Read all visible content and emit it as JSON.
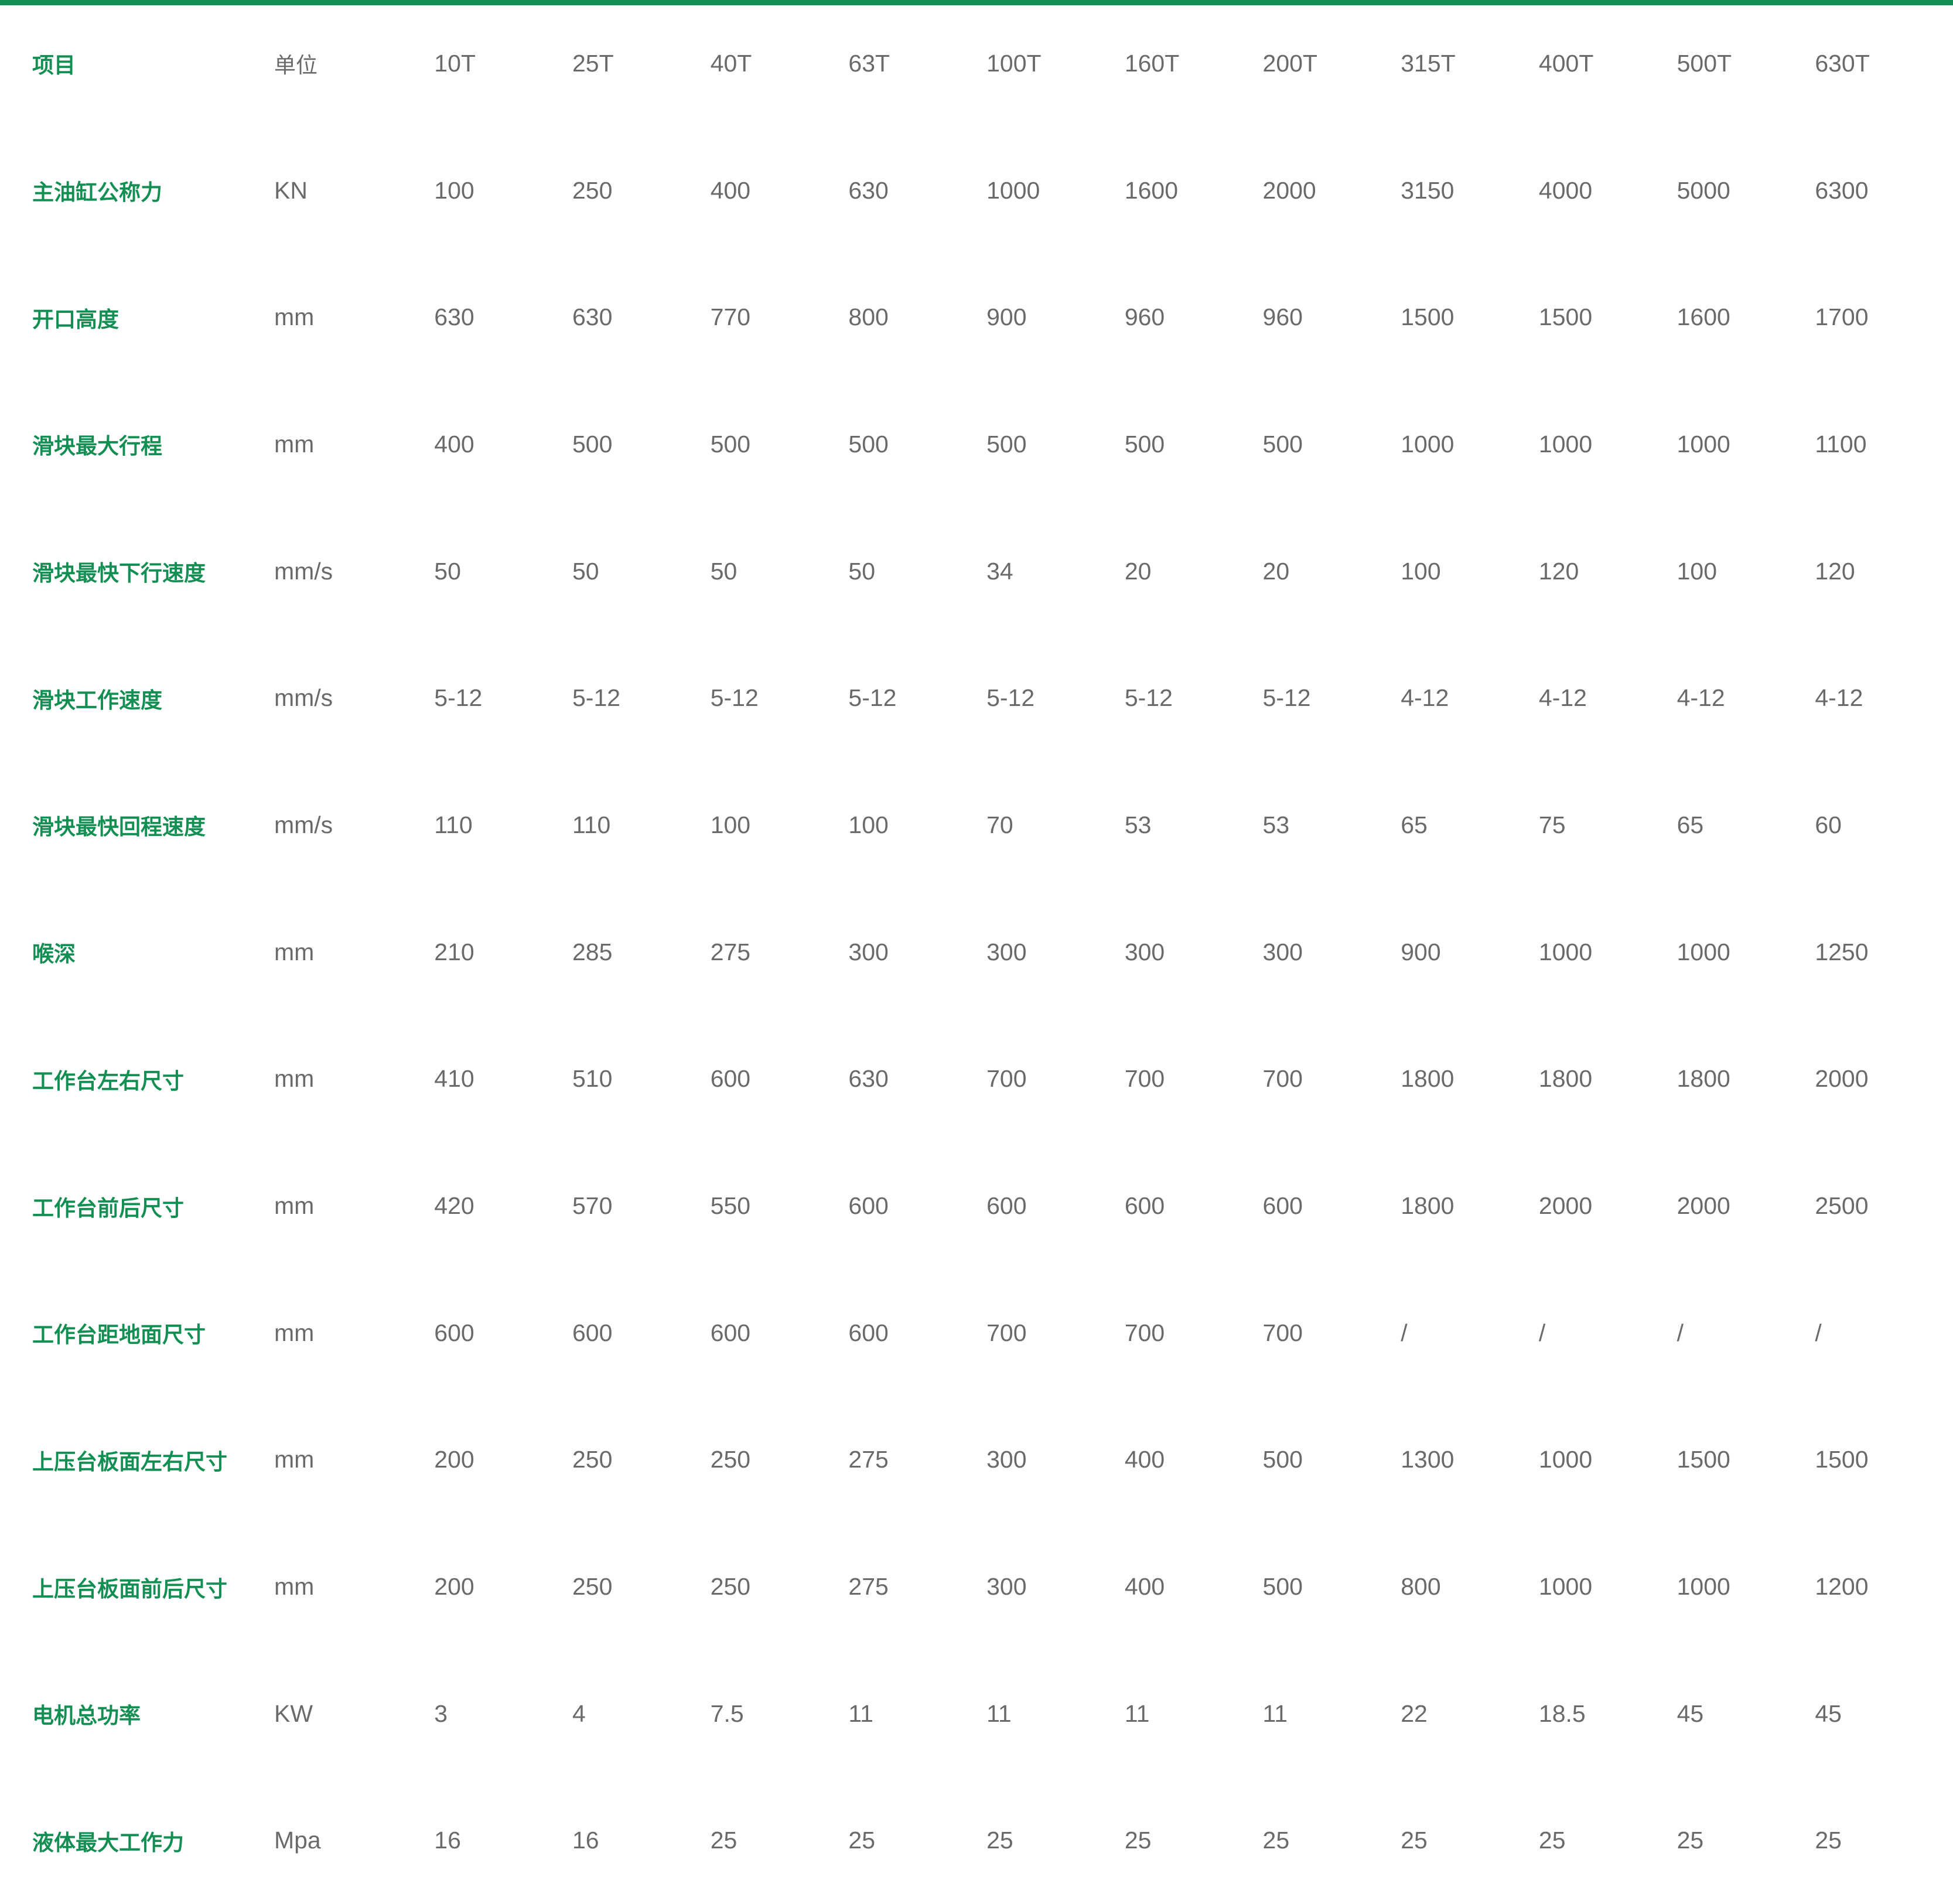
{
  "colors": {
    "accent": "#138f53",
    "text": "#6a6a6a"
  },
  "header": {
    "label": "项目",
    "unit": "单位",
    "models": [
      "10T",
      "25T",
      "40T",
      "63T",
      "100T",
      "160T",
      "200T",
      "315T",
      "400T",
      "500T",
      "630T"
    ]
  },
  "rows": [
    {
      "label": "主油缸公称力",
      "unit": "KN",
      "values": [
        "100",
        "250",
        "400",
        "630",
        "1000",
        "1600",
        "2000",
        "3150",
        "4000",
        "5000",
        "6300"
      ]
    },
    {
      "label": "开口高度",
      "unit": "mm",
      "values": [
        "630",
        "630",
        "770",
        "800",
        "900",
        "960",
        "960",
        "1500",
        "1500",
        "1600",
        "1700"
      ]
    },
    {
      "label": "滑块最大行程",
      "unit": "mm",
      "values": [
        "400",
        "500",
        "500",
        "500",
        "500",
        "500",
        "500",
        "1000",
        "1000",
        "1000",
        "1100"
      ]
    },
    {
      "label": "滑块最快下行速度",
      "unit": "mm/s",
      "values": [
        "50",
        "50",
        "50",
        "50",
        "34",
        "20",
        "20",
        "100",
        "120",
        "100",
        "120"
      ]
    },
    {
      "label": "滑块工作速度",
      "unit": "mm/s",
      "values": [
        "5-12",
        "5-12",
        "5-12",
        "5-12",
        "5-12",
        "5-12",
        "5-12",
        "4-12",
        "4-12",
        "4-12",
        "4-12"
      ]
    },
    {
      "label": "滑块最快回程速度",
      "unit": "mm/s",
      "values": [
        "110",
        "110",
        "100",
        "100",
        "70",
        "53",
        "53",
        "65",
        "75",
        "65",
        "60"
      ]
    },
    {
      "label": "喉深",
      "unit": "mm",
      "values": [
        "210",
        "285",
        "275",
        "300",
        "300",
        "300",
        "300",
        "900",
        "1000",
        "1000",
        "1250"
      ]
    },
    {
      "label": "工作台左右尺寸",
      "unit": "mm",
      "values": [
        "410",
        "510",
        "600",
        "630",
        "700",
        "700",
        "700",
        "1800",
        "1800",
        "1800",
        "2000"
      ]
    },
    {
      "label": "工作台前后尺寸",
      "unit": "mm",
      "values": [
        "420",
        "570",
        "550",
        "600",
        "600",
        "600",
        "600",
        "1800",
        "2000",
        "2000",
        "2500"
      ]
    },
    {
      "label": "工作台距地面尺寸",
      "unit": "mm",
      "values": [
        "600",
        "600",
        "600",
        "600",
        "700",
        "700",
        "700",
        "/",
        "/",
        "/",
        "/"
      ]
    },
    {
      "label": "上压台板面左右尺寸",
      "unit": "mm",
      "values": [
        "200",
        "250",
        "250",
        "275",
        "300",
        "400",
        "500",
        "1300",
        "1000",
        "1500",
        "1500"
      ]
    },
    {
      "label": "上压台板面前后尺寸",
      "unit": "mm",
      "values": [
        "200",
        "250",
        "250",
        "275",
        "300",
        "400",
        "500",
        "800",
        "1000",
        "1000",
        "1200"
      ]
    },
    {
      "label": "电机总功率",
      "unit": "KW",
      "values": [
        "3",
        "4",
        "7.5",
        "11",
        "11",
        "11",
        "11",
        "22",
        "18.5",
        "45",
        "45"
      ]
    },
    {
      "label": "液体最大工作力",
      "unit": "Mpa",
      "values": [
        "16",
        "16",
        "25",
        "25",
        "25",
        "25",
        "25",
        "25",
        "25",
        "25",
        "25"
      ]
    }
  ]
}
